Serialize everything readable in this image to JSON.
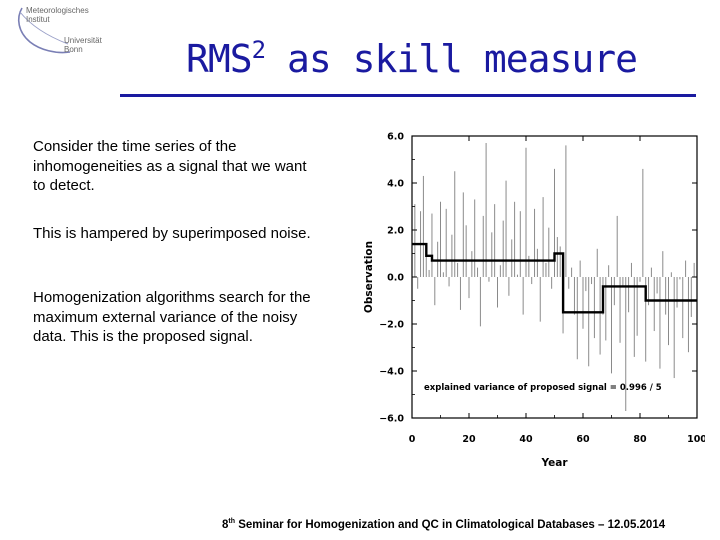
{
  "header": {
    "logo": {
      "line1": "Meteorologisches",
      "line2": "Institut",
      "line3": "Universität",
      "line4": "Bonn"
    },
    "title_main": "RMS",
    "title_sup": "2",
    "title_rest": "as skill measure"
  },
  "body": {
    "para1": "Consider the time series of the inhomogeneities as a signal that we want to detect.",
    "para2": "This is hampered by superimposed noise.",
    "para3": "Homogenization algorithms search for the maximum external variance of the noisy data. This is the proposed signal."
  },
  "figure": {
    "annotation": "explained variance of proposed signal = 0.996 / 5",
    "ylabel": "Observation",
    "xlabel": "Year",
    "yticks": [
      "6.0",
      "4.0",
      "2.0",
      "0.0",
      "−2.0",
      "−4.0",
      "−6.0"
    ],
    "xticks": [
      "0",
      "20",
      "40",
      "60",
      "80",
      "100"
    ]
  },
  "footer": {
    "ordinal": "8",
    "ordinal_suffix": "th",
    "text": "Seminar for Homogenization and QC in Climatological Databases – 12.05.2014"
  },
  "chart_data": {
    "type": "line",
    "xlim": [
      0,
      100
    ],
    "ylim": [
      -6,
      6
    ],
    "xlabel": "Year",
    "ylabel": "Observation",
    "grid": false,
    "series": [
      {
        "style": "vertical bars (noisy data)",
        "x": [
          1,
          2,
          3,
          4,
          5,
          6,
          7,
          8,
          9,
          10,
          11,
          12,
          13,
          14,
          15,
          16,
          17,
          18,
          19,
          20,
          21,
          22,
          23,
          24,
          25,
          26,
          27,
          28,
          29,
          30,
          31,
          32,
          33,
          34,
          35,
          36,
          37,
          38,
          39,
          40,
          41,
          42,
          43,
          44,
          45,
          46,
          47,
          48,
          49,
          50,
          51,
          52,
          53,
          54,
          55,
          56,
          57,
          58,
          59,
          60,
          61,
          62,
          63,
          64,
          65,
          66,
          67,
          68,
          69,
          70,
          71,
          72,
          73,
          74,
          75,
          76,
          77,
          78,
          79,
          80,
          81,
          82,
          83,
          84,
          85,
          86,
          87,
          88,
          89,
          90,
          91,
          92,
          93,
          94,
          95,
          96,
          97,
          98,
          99,
          100
        ],
        "values": [
          3.1,
          -0.5,
          2.8,
          4.3,
          1.1,
          0.3,
          2.7,
          -1.2,
          1.5,
          3.2,
          0.2,
          2.9,
          -0.4,
          1.8,
          4.5,
          0.6,
          -1.4,
          3.6,
          2.2,
          -0.9,
          1.1,
          3.3,
          0.4,
          -2.1,
          2.6,
          5.7,
          -0.2,
          1.9,
          3.1,
          -1.3,
          0.5,
          2.4,
          4.1,
          -0.8,
          1.6,
          3.2,
          0.1,
          2.8,
          -1.6,
          5.5,
          0.9,
          -0.3,
          2.9,
          1.2,
          -1.9,
          3.4,
          0.6,
          2.1,
          -0.5,
          4.6,
          1.7,
          1.3,
          -2.4,
          5.6,
          -0.5,
          0.4,
          -1.6,
          -3.5,
          0.7,
          -2.2,
          -0.6,
          -3.8,
          -0.3,
          -2.6,
          1.2,
          -3.3,
          -1.6,
          -2.7,
          0.5,
          -4.1,
          -1.2,
          2.6,
          -2.8,
          -0.4,
          -5.7,
          -1.5,
          0.6,
          -3.4,
          -2.5,
          -0.2,
          4.6,
          -3.6,
          -1.2,
          0.4,
          -2.3,
          -0.7,
          -3.9,
          1.1,
          -1.6,
          -2.9,
          0.2,
          -4.3,
          -1.3,
          -0.1,
          -2.6,
          0.7,
          -3.2,
          -1.7,
          0.6,
          -2.4
        ]
      },
      {
        "style": "step (proposed signal)",
        "x": [
          0,
          5,
          5,
          7,
          7,
          50,
          50,
          53,
          53,
          67,
          67,
          82,
          82,
          100
        ],
        "values": [
          1.4,
          1.4,
          0.9,
          0.9,
          0.7,
          0.7,
          1.0,
          1.0,
          -1.5,
          -1.5,
          -0.4,
          -0.4,
          -1.0,
          -1.0
        ]
      }
    ],
    "annotations": [
      "explained variance of proposed signal = 0.996 / 5"
    ]
  }
}
